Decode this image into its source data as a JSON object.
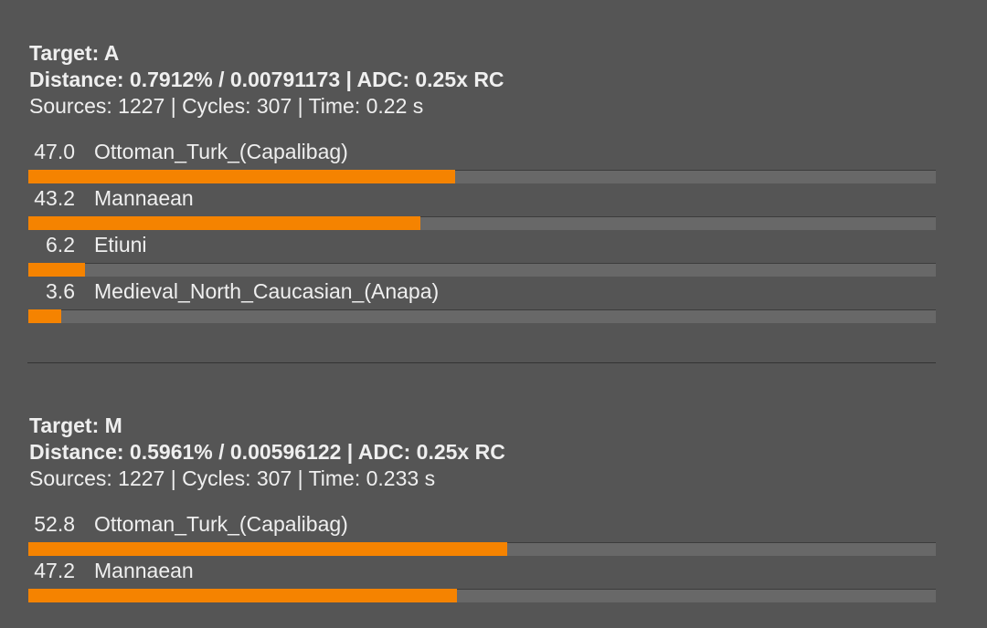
{
  "results": [
    {
      "target": "Target: A",
      "distance": "Distance: 0.7912% / 0.00791173 | ADC: 0.25x RC",
      "stats": "Sources: 1227 | Cycles: 307 | Time: 0.22 s",
      "rows": [
        {
          "value": 47.0,
          "value_label": "47.0",
          "name": "Ottoman_Turk_(Capalibag)"
        },
        {
          "value": 43.2,
          "value_label": "43.2",
          "name": "Mannaean"
        },
        {
          "value": 6.2,
          "value_label": "6.2",
          "name": "Etiuni"
        },
        {
          "value": 3.6,
          "value_label": "3.6",
          "name": "Medieval_North_Caucasian_(Anapa)"
        }
      ]
    },
    {
      "target": "Target: M",
      "distance": "Distance: 0.5961% / 0.00596122 | ADC: 0.25x RC",
      "stats": "Sources: 1227 | Cycles: 307 | Time: 0.233 s",
      "rows": [
        {
          "value": 52.8,
          "value_label": "52.8",
          "name": "Ottoman_Turk_(Capalibag)"
        },
        {
          "value": 47.2,
          "value_label": "47.2",
          "name": "Mannaean"
        }
      ]
    }
  ]
}
